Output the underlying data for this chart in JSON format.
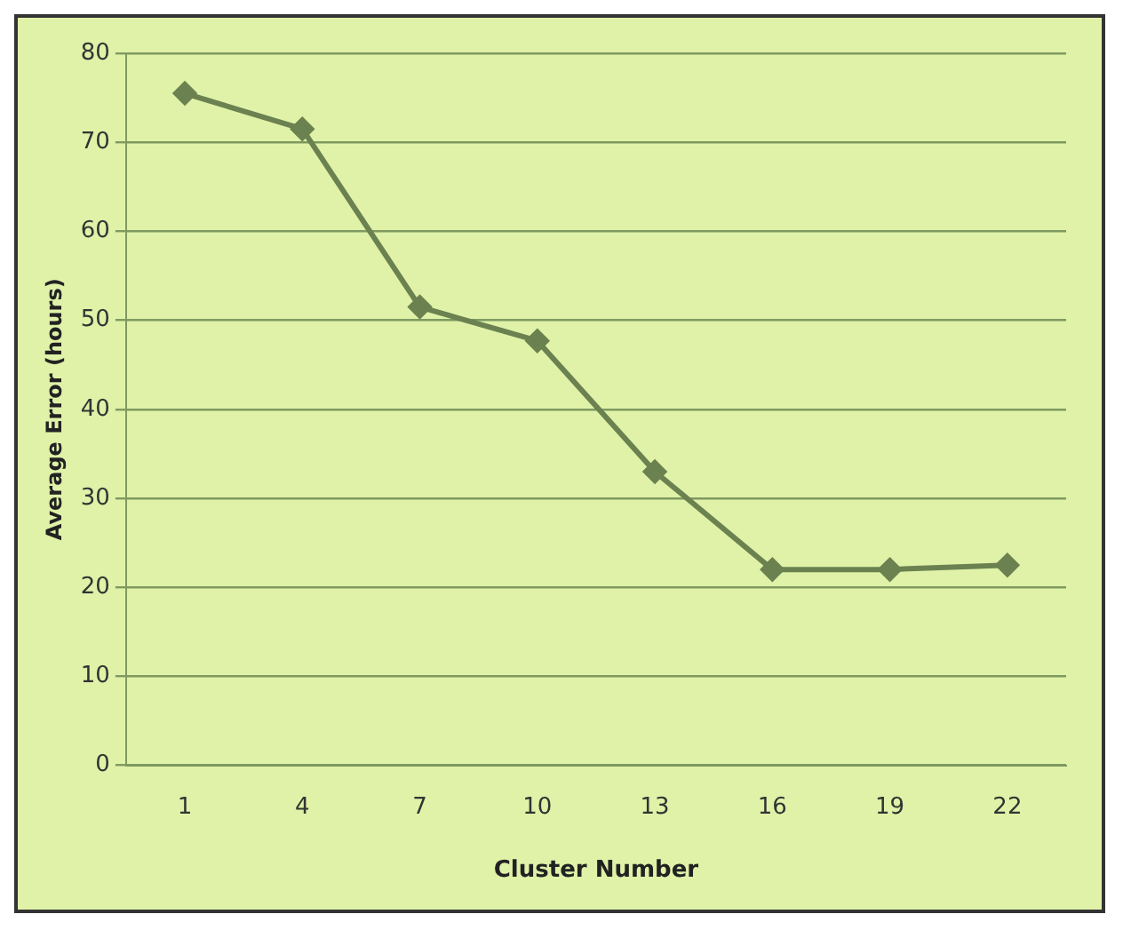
{
  "chart_data": {
    "type": "line",
    "xlabel": "Cluster Number",
    "ylabel": "Average Error (hours)",
    "categories": [
      "1",
      "4",
      "7",
      "10",
      "13",
      "16",
      "19",
      "22"
    ],
    "series": [
      {
        "color": "#6b8150",
        "values": [
          75.5,
          71.5,
          51.5,
          47.7,
          33,
          22,
          22,
          22.5
        ]
      }
    ],
    "ylim": [
      0,
      80
    ],
    "yticks": [
      0,
      10,
      20,
      30,
      40,
      50,
      60,
      70,
      80
    ],
    "grid": "y",
    "legend": false,
    "marker": "diamond",
    "line_style": "solid"
  }
}
